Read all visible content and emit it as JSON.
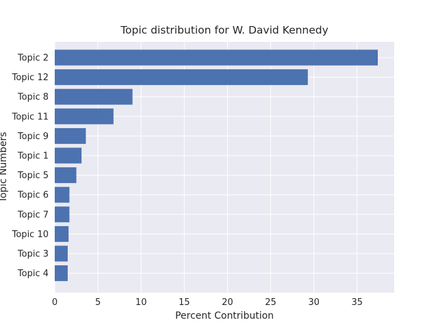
{
  "chart_data": {
    "type": "bar",
    "orientation": "horizontal",
    "title": "Topic distribution for W. David Kennedy",
    "xlabel": "Percent Contribution",
    "ylabel": "Topic Numbers",
    "categories": [
      "Topic 2",
      "Topic 12",
      "Topic 8",
      "Topic 11",
      "Topic 9",
      "Topic 1",
      "Topic 5",
      "Topic 6",
      "Topic 7",
      "Topic 10",
      "Topic 3",
      "Topic 4"
    ],
    "values": [
      37.4,
      29.3,
      9.0,
      6.8,
      3.6,
      3.1,
      2.5,
      1.7,
      1.7,
      1.6,
      1.5,
      1.5
    ],
    "xlim": [
      0,
      39.3
    ],
    "xticks": [
      0,
      5,
      10,
      15,
      20,
      25,
      30,
      35
    ],
    "grid": true,
    "colors": {
      "bar": "#4c72b0",
      "background": "#eaeaf2",
      "grid": "#ffffff"
    }
  }
}
